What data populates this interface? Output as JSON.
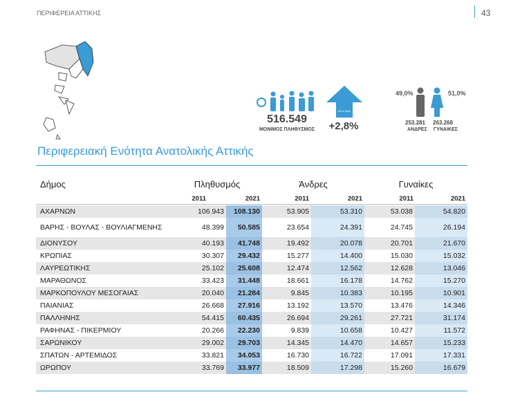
{
  "header": {
    "region": "ΠΕΡΙΦΕΡΕΙΑ ΑΤΤΙΚΗΣ",
    "page": "43"
  },
  "stats": {
    "population": "516.549",
    "population_label": "ΜΟΝΙΜΟΣ ΠΛΗΘΥΣΜΟΣ",
    "change": "+2,8%",
    "change_period": "2011-2021",
    "men_share": "49,0%",
    "women_share": "51,0%",
    "men": "253.281",
    "men_label": "ΑΝΔΡΕΣ",
    "women": "263.268",
    "women_label": "ΓΥΝΑΙΚΕΣ"
  },
  "section_title": "Περιφερειακή Ενότητα Ανατολικής Αττικής",
  "table": {
    "groups": [
      "Δήμος",
      "Πληθυσμός",
      "Άνδρες",
      "Γυναίκες"
    ],
    "years": [
      "2011",
      "2021",
      "2011",
      "2021",
      "2011",
      "2021"
    ],
    "rows": [
      [
        "ΑΧΑΡΝΩΝ",
        "106.943",
        "108.130",
        "53.905",
        "53.310",
        "53.038",
        "54.820"
      ],
      [
        "ΒΑΡΗΣ - ΒΟΥΛΑΣ - ΒΟΥΛΙΑΓΜΕΝΗΣ",
        "48.399",
        "50.585",
        "23.654",
        "24.391",
        "24.745",
        "26.194"
      ],
      [
        "ΔΙΟΝΥΣΟΥ",
        "40.193",
        "41.748",
        "19.492",
        "20.078",
        "20.701",
        "21.670"
      ],
      [
        "ΚΡΩΠΙΑΣ",
        "30.307",
        "29.432",
        "15.277",
        "14.400",
        "15.030",
        "15.032"
      ],
      [
        "ΛΑΥΡΕΩΤΙΚΗΣ",
        "25.102",
        "25.608",
        "12.474",
        "12.562",
        "12.628",
        "13.046"
      ],
      [
        "ΜΑΡΑΘΩΝΟΣ",
        "33.423",
        "31.448",
        "18.661",
        "16.178",
        "14.762",
        "15.270"
      ],
      [
        "ΜΑΡΚΟΠΟΥΛΟΥ ΜΕΣΟΓΑΙΑΣ",
        "20.040",
        "21.284",
        "9.845",
        "10.383",
        "10.195",
        "10.901"
      ],
      [
        "ΠΑΙΑΝΙΑΣ",
        "26.668",
        "27.916",
        "13.192",
        "13.570",
        "13.476",
        "14.346"
      ],
      [
        "ΠΑΛΛΗΝΗΣ",
        "54.415",
        "60.435",
        "26.694",
        "29.261",
        "27.721",
        "31.174"
      ],
      [
        "ΡΑΦΗΝΑΣ - ΠΙΚΕΡΜΙΟΥ",
        "20.266",
        "22.230",
        "9.839",
        "10.658",
        "10.427",
        "11.572"
      ],
      [
        "ΣΑΡΩΝΙΚΟΥ",
        "29.002",
        "29.703",
        "14.345",
        "14.470",
        "14.657",
        "15.233"
      ],
      [
        "ΣΠΑΤΩΝ - ΑΡΤΕΜΙΔΟΣ",
        "33.821",
        "34.053",
        "16.730",
        "16.722",
        "17.091",
        "17.331"
      ],
      [
        "ΩΡΩΠΟΥ",
        "33.769",
        "33.977",
        "18.509",
        "17.298",
        "15.260",
        "16.679"
      ]
    ]
  }
}
